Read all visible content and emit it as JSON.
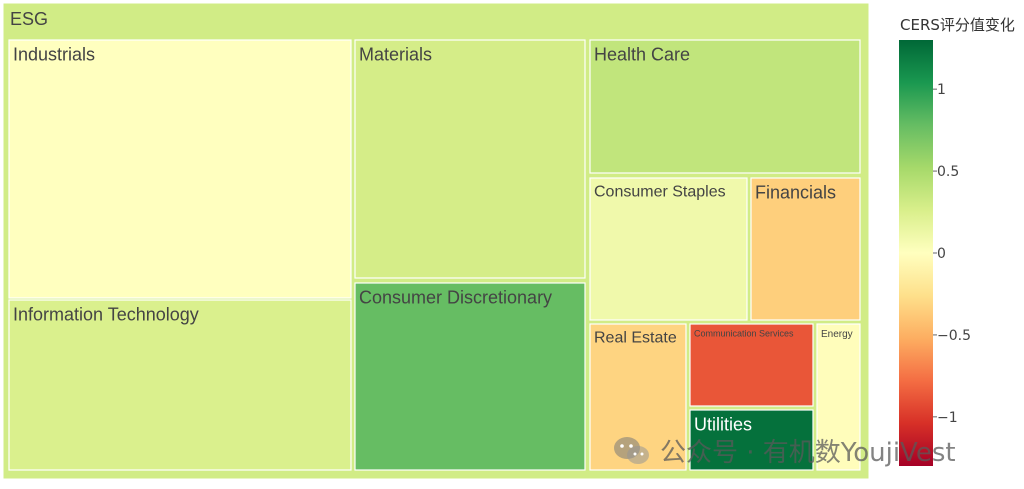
{
  "chart_data": {
    "type": "treemap",
    "root": "ESG",
    "colorbar": {
      "title": "CERS评分值变化",
      "ticks": [
        1,
        0.5,
        0,
        -0.5,
        -1
      ],
      "tick_labels": [
        "1",
        "0.5",
        "0",
        "−0.5",
        "−1"
      ],
      "range": [
        -1.3,
        1.3
      ],
      "colorscale": "RdYlGn"
    },
    "sectors": [
      {
        "name": "Industrials",
        "value": 0.0
      },
      {
        "name": "Information Technology",
        "value": 0.25
      },
      {
        "name": "Materials",
        "value": 0.28
      },
      {
        "name": "Consumer Discretionary",
        "value": 0.78
      },
      {
        "name": "Health Care",
        "value": 0.38
      },
      {
        "name": "Consumer Staples",
        "value": 0.1
      },
      {
        "name": "Financials",
        "value": -0.35
      },
      {
        "name": "Real Estate",
        "value": -0.32
      },
      {
        "name": "Communication Services",
        "value": -0.88
      },
      {
        "name": "Energy",
        "value": -0.02
      },
      {
        "name": "Utilities",
        "value": 1.25
      }
    ],
    "root_value": 0.3
  },
  "watermark": {
    "text": "公众号 · 有机数YoujiVest",
    "icon": "wechat-icon"
  }
}
